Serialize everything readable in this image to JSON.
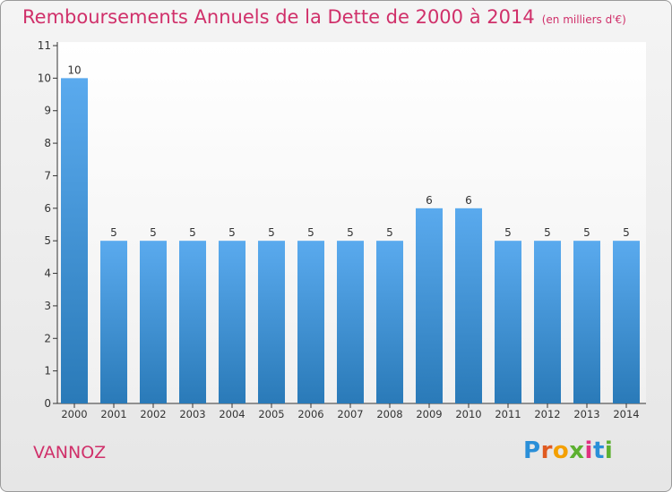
{
  "header": {
    "title": "Remboursements Annuels de la Dette de 2000 à 2014",
    "subtitle": "(en milliers d'€)"
  },
  "footer": {
    "town": "VANNOZ",
    "logo_text": "Proxiti"
  },
  "colors": {
    "title": "#d0306a",
    "bar_top": "#5aaaee",
    "bar_bottom": "#2a7ab8",
    "axis": "#333333",
    "logo_letters": [
      "#2a8fd8",
      "#e05a20",
      "#f4a000",
      "#5cb030",
      "#e03080",
      "#2a8fd8",
      "#5cb030"
    ]
  },
  "chart_data": {
    "type": "bar",
    "title": "Remboursements Annuels de la Dette de 2000 à 2014",
    "xlabel": "",
    "ylabel": "",
    "categories": [
      "2000",
      "2001",
      "2002",
      "2003",
      "2004",
      "2005",
      "2006",
      "2007",
      "2008",
      "2009",
      "2010",
      "2011",
      "2012",
      "2013",
      "2014"
    ],
    "values": [
      10,
      5,
      5,
      5,
      5,
      5,
      5,
      5,
      5,
      6,
      6,
      5,
      5,
      5,
      5
    ],
    "ylim": [
      0,
      11
    ],
    "yticks": [
      0,
      1,
      2,
      3,
      4,
      5,
      6,
      7,
      8,
      9,
      10,
      11
    ],
    "grid": false,
    "data_labels": true
  }
}
